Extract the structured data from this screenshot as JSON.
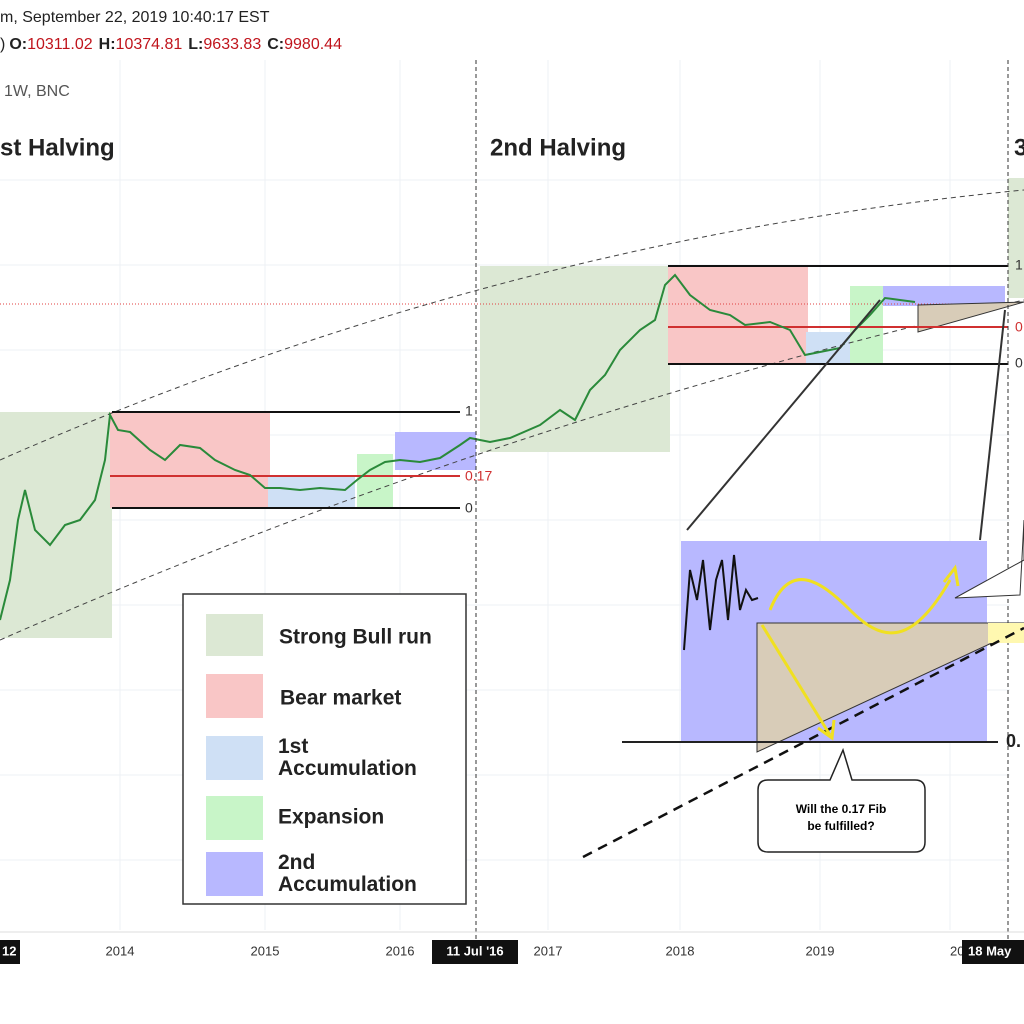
{
  "header": {
    "datetime": "m, September 22, 2019 10:40:17 EST",
    "prefix": ")",
    "ohlc": [
      {
        "label": "O:",
        "value": "10311.02"
      },
      {
        "label": "H:",
        "value": "10374.81"
      },
      {
        "label": "L:",
        "value": "9633.83"
      },
      {
        "label": "C:",
        "value": "9980.44"
      }
    ]
  },
  "interval": "1W, BNC",
  "halvings": [
    "st Halving",
    "2nd Halving",
    "3"
  ],
  "fib_labels": {
    "cycle1": [
      "1",
      "0.17",
      "0"
    ],
    "cycle2": [
      "1",
      "0",
      "0"
    ],
    "inset": "0."
  },
  "legend": [
    "Strong Bull run",
    "Bear market",
    "1st Accumulation",
    "Expansion",
    "2nd Accumulation"
  ],
  "x_axis": [
    "2014",
    "2015",
    "2016",
    "2017",
    "2018",
    "2019",
    "20"
  ],
  "x_axis_highlights": [
    "12",
    "11 Jul '16",
    "18 May"
  ],
  "callout": [
    "Will the 0.17 Fib",
    "be fulfilled?"
  ]
}
